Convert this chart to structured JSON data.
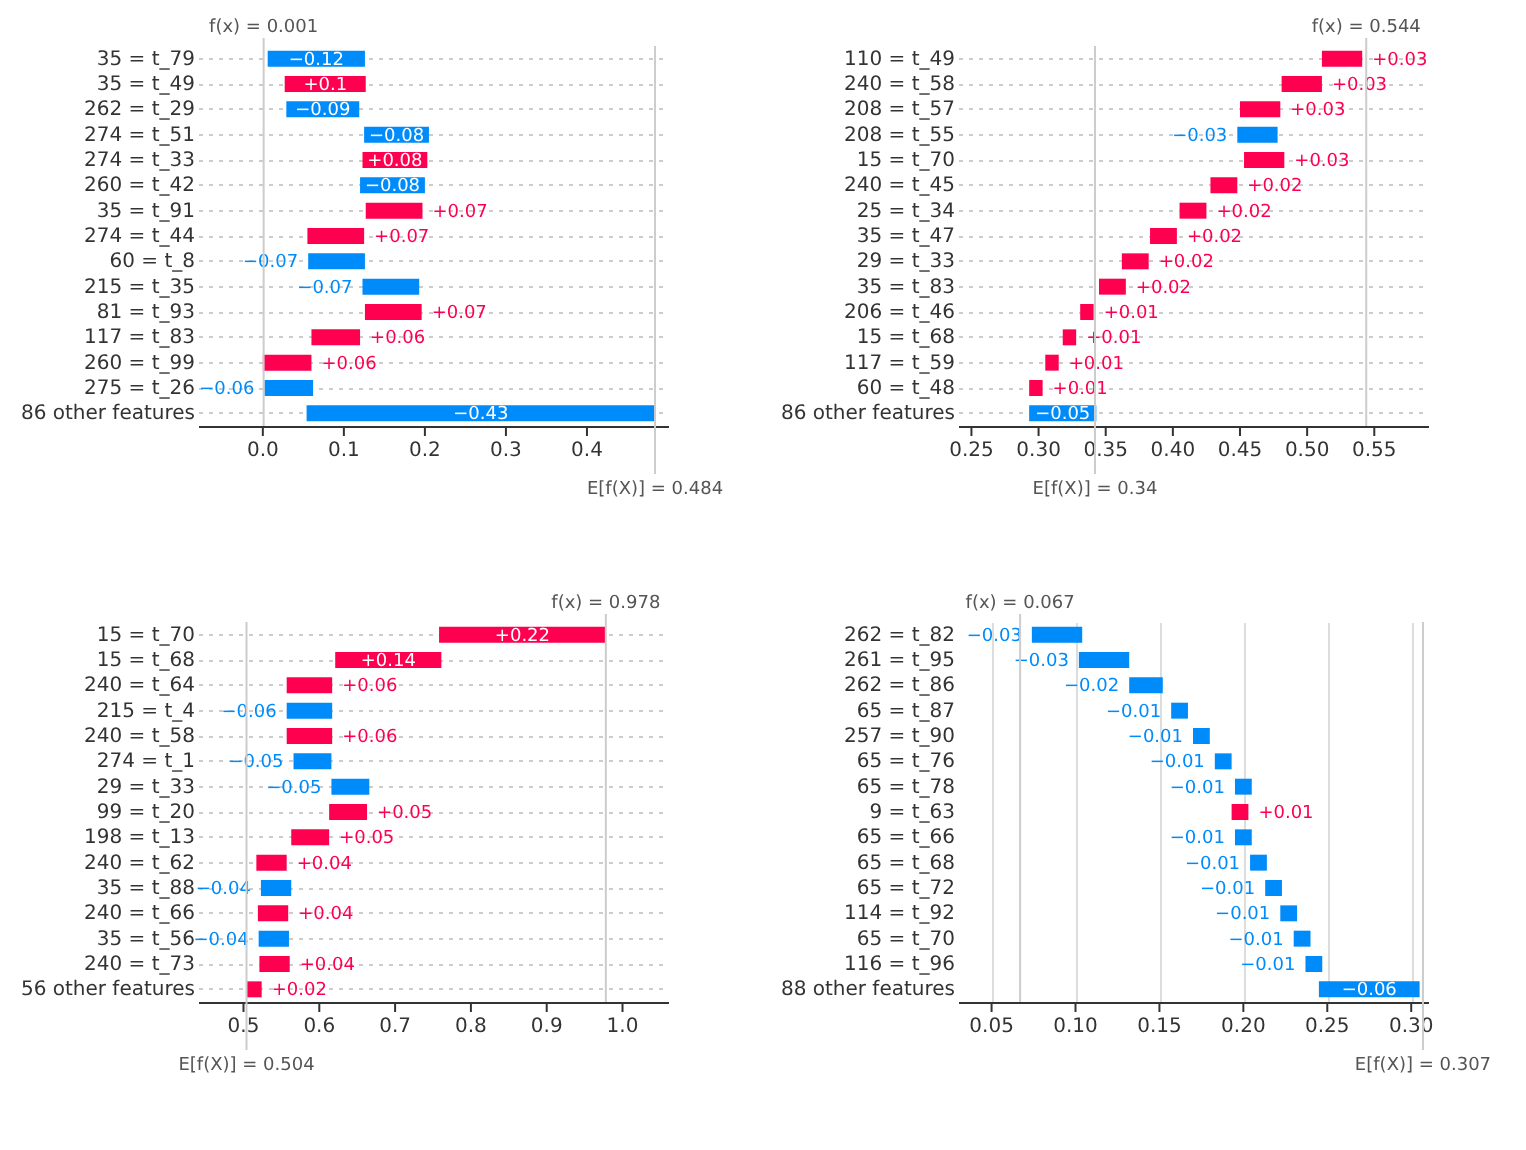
{
  "chart_data": [
    {
      "type": "bar",
      "orientation": "horizontal",
      "grid": "y",
      "categories": [
        "35 = t_79",
        "35 = t_49",
        "262 = t_29",
        "274 = t_51",
        "274 = t_33",
        "260 = t_42",
        "35 = t_91",
        "274 = t_44",
        "60 = t_8",
        "215 = t_35",
        "81 = t_93",
        "117 = t_83",
        "260 = t_99",
        "275 = t_26",
        "86 other features"
      ],
      "values": [
        -0.12,
        0.1,
        -0.09,
        -0.08,
        0.08,
        -0.08,
        0.07,
        0.07,
        -0.07,
        -0.07,
        0.07,
        0.06,
        0.06,
        -0.06,
        -0.43
      ],
      "base": [
        0.126,
        0.027,
        0.119,
        0.205,
        0.123,
        0.2,
        0.127,
        0.055,
        0.126,
        0.193,
        0.126,
        0.06,
        0.0,
        0.062,
        0.484
      ],
      "colors": [
        "#008bfb",
        "#ff0051",
        "#008bfb",
        "#008bfb",
        "#ff0051",
        "#008bfb",
        "#ff0051",
        "#ff0051",
        "#008bfb",
        "#008bfb",
        "#ff0051",
        "#ff0051",
        "#ff0051",
        "#008bfb",
        "#008bfb"
      ],
      "value_labels": [
        "−0.12",
        "+0.1",
        "−0.09",
        "−0.08",
        "+0.08",
        "−0.08",
        "+0.07",
        "+0.07",
        "−0.07",
        "−0.07",
        "+0.07",
        "+0.06",
        "+0.06",
        "−0.06",
        "−0.43"
      ],
      "xlim": [
        -0.08,
        0.5
      ],
      "xticks": [
        {
          "value": 0,
          "label": "0.0"
        },
        0.1,
        0.2,
        0.3,
        0.4
      ],
      "ref_lines": [
        {
          "axis": "x",
          "value": 0.001,
          "label": "f(x) = 0.001"
        },
        {
          "axis": "x",
          "value": 0.484,
          "label": "E[f(X)] = 0.484"
        }
      ]
    },
    {
      "type": "bar",
      "orientation": "horizontal",
      "grid": "y",
      "categories": [
        "110 = t_49",
        "240 = t_58",
        "208 = t_57",
        "208 = t_55",
        "15 = t_70",
        "240 = t_45",
        "25 = t_34",
        "35 = t_47",
        "29 = t_33",
        "35 = t_83",
        "206 = t_46",
        "15 = t_68",
        "117 = t_59",
        "60 = t_48",
        "86 other features"
      ],
      "values": [
        0.03,
        0.03,
        0.03,
        -0.03,
        0.03,
        0.02,
        0.02,
        0.02,
        0.02,
        0.02,
        0.01,
        0.01,
        0.01,
        0.01,
        -0.05
      ],
      "base": [
        0.511,
        0.481,
        0.45,
        0.478,
        0.453,
        0.428,
        0.405,
        0.383,
        0.362,
        0.345,
        0.331,
        0.318,
        0.305,
        0.293,
        0.343
      ],
      "colors": [
        "#ff0051",
        "#ff0051",
        "#ff0051",
        "#008bfb",
        "#ff0051",
        "#ff0051",
        "#ff0051",
        "#ff0051",
        "#ff0051",
        "#ff0051",
        "#ff0051",
        "#ff0051",
        "#ff0051",
        "#ff0051",
        "#008bfb"
      ],
      "value_labels": [
        "+0.03",
        "+0.03",
        "+0.03",
        "−0.03",
        "+0.03",
        "+0.02",
        "+0.02",
        "+0.02",
        "+0.02",
        "+0.02",
        "+0.01",
        "+0.01",
        "+0.01",
        "+0.01",
        "−0.05"
      ],
      "xlim": [
        0.24,
        0.59
      ],
      "xticks": [
        0.25,
        {
          "value": 0.3,
          "label": "0.30"
        },
        0.35,
        {
          "value": 0.4,
          "label": "0.40"
        },
        0.45,
        {
          "value": 0.5,
          "label": "0.50"
        },
        0.55
      ],
      "ref_lines": [
        {
          "axis": "x",
          "value": 0.544,
          "label": "f(x) = 0.544"
        },
        {
          "axis": "x",
          "value": 0.342,
          "label": "E[f(X)] = 0.34"
        }
      ]
    },
    {
      "type": "bar",
      "orientation": "horizontal",
      "grid": "y",
      "categories": [
        "15 = t_70",
        "15 = t_68",
        "240 = t_64",
        "215 = t_4",
        "240 = t_58",
        "274 = t_1",
        "29 = t_33",
        "99 = t_20",
        "198 = t_13",
        "240 = t_62",
        "35 = t_88",
        "240 = t_66",
        "35 = t_56",
        "240 = t_73",
        "56 other features"
      ],
      "values": [
        0.22,
        0.14,
        0.06,
        -0.06,
        0.06,
        -0.05,
        -0.05,
        0.05,
        0.05,
        0.04,
        -0.04,
        0.04,
        -0.04,
        0.04,
        0.02
      ],
      "base": [
        0.758,
        0.621,
        0.557,
        0.617,
        0.557,
        0.616,
        0.666,
        0.613,
        0.563,
        0.517,
        0.563,
        0.519,
        0.56,
        0.521,
        0.504
      ],
      "colors": [
        "#ff0051",
        "#ff0051",
        "#ff0051",
        "#008bfb",
        "#ff0051",
        "#008bfb",
        "#008bfb",
        "#ff0051",
        "#ff0051",
        "#ff0051",
        "#008bfb",
        "#ff0051",
        "#008bfb",
        "#ff0051",
        "#ff0051"
      ],
      "value_labels": [
        "+0.22",
        "+0.14",
        "+0.06",
        "−0.06",
        "+0.06",
        "−0.05",
        "−0.05",
        "+0.05",
        "+0.05",
        "+0.04",
        "−0.04",
        "+0.04",
        "−0.04",
        "+0.04",
        "+0.02"
      ],
      "xlim": [
        0.44,
        1.06
      ],
      "xticks": [
        0.5,
        0.6,
        0.7,
        0.8,
        0.9,
        {
          "value": 1,
          "label": "1.0"
        }
      ],
      "ref_lines": [
        {
          "axis": "x",
          "value": 0.978,
          "label": "f(x) = 0.978"
        },
        {
          "axis": "x",
          "value": 0.504,
          "label": "E[f(X)] = 0.504"
        }
      ]
    },
    {
      "type": "bar",
      "orientation": "horizontal",
      "grid": "x",
      "categories": [
        "262 = t_82",
        "261 = t_95",
        "262 = t_86",
        "65 = t_87",
        "257 = t_90",
        "65 = t_76",
        "65 = t_78",
        "9 = t_63",
        "65 = t_66",
        "65 = t_68",
        "65 = t_72",
        "114 = t_92",
        "65 = t_70",
        "116 = t_96",
        "88 other features"
      ],
      "values": [
        -0.03,
        -0.03,
        -0.02,
        -0.01,
        -0.01,
        -0.01,
        -0.01,
        0.01,
        -0.01,
        -0.01,
        -0.01,
        -0.01,
        -0.01,
        -0.01,
        -0.06
      ],
      "base": [
        0.104,
        0.132,
        0.152,
        0.167,
        0.18,
        0.193,
        0.205,
        0.193,
        0.205,
        0.214,
        0.223,
        0.232,
        0.24,
        0.247,
        0.305
      ],
      "colors": [
        "#008bfb",
        "#008bfb",
        "#008bfb",
        "#008bfb",
        "#008bfb",
        "#008bfb",
        "#008bfb",
        "#ff0051",
        "#008bfb",
        "#008bfb",
        "#008bfb",
        "#008bfb",
        "#008bfb",
        "#008bfb",
        "#008bfb"
      ],
      "value_labels": [
        "−0.03",
        "−0.03",
        "−0.02",
        "−0.01",
        "−0.01",
        "−0.01",
        "−0.01",
        "+0.01",
        "−0.01",
        "−0.01",
        "−0.01",
        "−0.01",
        "−0.01",
        "−0.01",
        "−0.06"
      ],
      "xlim": [
        0.03,
        0.31
      ],
      "xticks": [
        0.05,
        {
          "value": 0.1,
          "label": "0.10"
        },
        0.15,
        {
          "value": 0.2,
          "label": "0.20"
        },
        0.25,
        {
          "value": 0.3,
          "label": "0.30"
        }
      ],
      "ref_lines": [
        {
          "axis": "x",
          "value": 0.067,
          "label": "f(x) = 0.067"
        },
        {
          "axis": "x",
          "value": 0.307,
          "label": "E[f(X)] = 0.307"
        }
      ]
    }
  ]
}
